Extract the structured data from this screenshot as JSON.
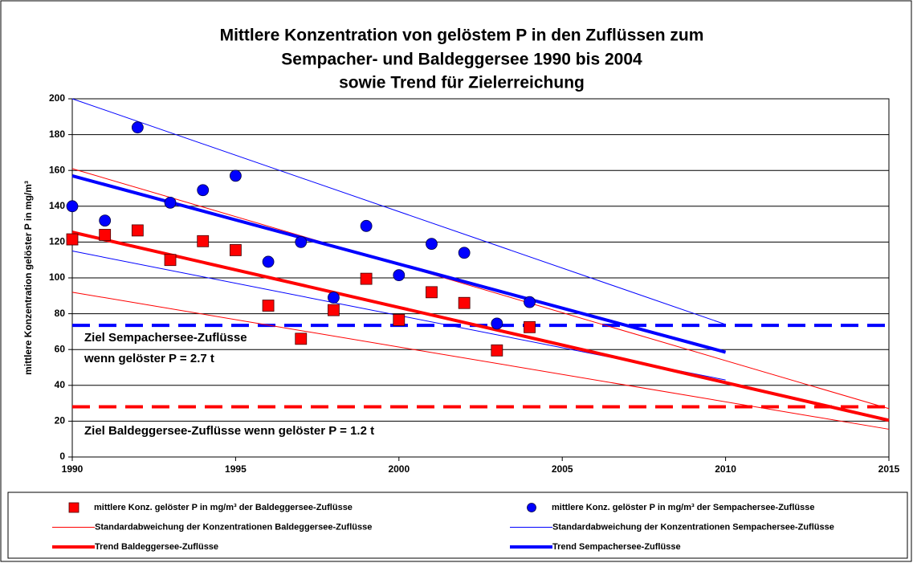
{
  "chart_data": {
    "type": "scatter",
    "title": [
      "Mittlere Konzentration von gelöstem P in den Zuflüssen zum",
      "Sempacher- und Baldeggersee 1990 bis 2004",
      "sowie Trend für Zielerreichung"
    ],
    "ylabel": "mittlere Konzentration gelöster P in mg/m³",
    "xlim": [
      1990,
      2015
    ],
    "xticks": [
      1990,
      1995,
      2000,
      2005,
      2010,
      2015
    ],
    "ylim": [
      0,
      200
    ],
    "yticks": [
      0,
      20,
      40,
      60,
      80,
      100,
      120,
      140,
      160,
      180,
      200
    ],
    "grid": true,
    "series": [
      {
        "name": "mittlere Konz. gelöster P in mg/m³  der Baldeggersee-Zuflüsse",
        "color": "#ff0000",
        "marker": "square",
        "x": [
          1990,
          1991,
          1992,
          1993,
          1994,
          1995,
          1996,
          1997,
          1998,
          1999,
          2000,
          2001,
          2002,
          2003,
          2004
        ],
        "values": [
          121.5,
          124,
          126.5,
          110,
          120.5,
          115.5,
          84.5,
          66,
          82,
          99.5,
          76.5,
          92,
          86,
          59.5,
          72.5
        ]
      },
      {
        "name": "mittlere Konz. gelöster P in mg/m³ der Sempachersee-Zuflüsse",
        "color": "#0000ff",
        "marker": "circle",
        "x": [
          1990,
          1991,
          1992,
          1993,
          1994,
          1995,
          1996,
          1997,
          1998,
          1999,
          2000,
          2001,
          2002,
          2003,
          2004
        ],
        "values": [
          140,
          132,
          184,
          142,
          149,
          157,
          109,
          120,
          89,
          129,
          101.5,
          119,
          114,
          74.5,
          86.5
        ]
      },
      {
        "name": "Standardabweichung der Konzentrationen Baldeggersee-Zuflüsse",
        "color": "#ff0000",
        "width": 1,
        "x": [
          1990,
          2015
        ],
        "values": [
          161,
          27
        ],
        "x2": [
          1990,
          2015
        ],
        "values2": [
          92,
          15.5
        ]
      },
      {
        "name": "Standardabweichung der Konzentrationen Sempachersee-Zuflüsse",
        "color": "#0000ff",
        "width": 1,
        "x": [
          1990,
          2010
        ],
        "values": [
          200,
          74
        ],
        "x2": [
          1990,
          2010
        ],
        "values2": [
          115,
          43
        ]
      },
      {
        "name": "Trend Baldeggersee-Zuflüsse",
        "color": "#ff0000",
        "width": 4,
        "x": [
          1990,
          2015
        ],
        "values": [
          125.5,
          20.5
        ]
      },
      {
        "name": "Trend Sempachersee-Zuflüsse",
        "color": "#0000ff",
        "width": 4,
        "x": [
          1990,
          2010
        ],
        "values": [
          157,
          58.5
        ]
      }
    ],
    "reference_lines": [
      {
        "value": 73.5,
        "color": "#0000ff"
      },
      {
        "value": 28,
        "color": "#ff0000"
      }
    ],
    "annotations": [
      "Ziel Sempachersee-Zuflüsse",
      "wenn gelöster P = 2.7 t",
      "Ziel Baldeggersee-Zuflüsse wenn gelöster P = 1.2 t"
    ]
  }
}
